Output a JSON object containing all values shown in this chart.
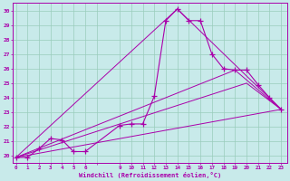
{
  "bg_color": "#c8eaea",
  "line_color": "#aa00aa",
  "grid_color": "#99ccbb",
  "xlabel": "Windchill (Refroidissement éolien,°C)",
  "ytick_labels": [
    "20",
    "21",
    "22",
    "23",
    "24",
    "25",
    "26",
    "27",
    "28",
    "29",
    "30"
  ],
  "ytick_positions": [
    20,
    21,
    22,
    23,
    24,
    25,
    26,
    27,
    28,
    29,
    30
  ],
  "xtick_labels": [
    "0",
    "1",
    "2",
    "3",
    "4",
    "5",
    "6",
    "",
    "9",
    "10",
    "11",
    "12",
    "13",
    "14",
    "15",
    "16",
    "17",
    "18",
    "19",
    "20",
    "21",
    "22",
    "23"
  ],
  "xtick_positions": [
    0,
    1,
    2,
    3,
    4,
    5,
    6,
    7,
    9,
    10,
    11,
    12,
    13,
    14,
    15,
    16,
    17,
    18,
    19,
    20,
    21,
    22,
    23
  ],
  "main_series_x": [
    0,
    1,
    2,
    3,
    4,
    5,
    6,
    9,
    10,
    11,
    12,
    13,
    14,
    15,
    16,
    17,
    18,
    19,
    20,
    21,
    22,
    23
  ],
  "main_series_y": [
    19.9,
    19.9,
    20.5,
    21.2,
    21.1,
    20.3,
    20.3,
    22.1,
    22.2,
    22.2,
    24.1,
    29.3,
    30.1,
    29.3,
    29.3,
    27.0,
    26.0,
    25.9,
    25.9,
    24.9,
    24.0,
    23.2
  ],
  "straight_lines": [
    {
      "x": [
        0,
        23
      ],
      "y": [
        19.9,
        23.2
      ]
    },
    {
      "x": [
        0,
        20,
        23
      ],
      "y": [
        19.9,
        25.0,
        23.2
      ]
    },
    {
      "x": [
        0,
        19,
        23
      ],
      "y": [
        19.9,
        25.9,
        23.2
      ]
    },
    {
      "x": [
        0,
        14,
        23
      ],
      "y": [
        19.9,
        30.1,
        23.2
      ]
    }
  ],
  "ylim": [
    19.5,
    30.5
  ],
  "xlim": [
    -0.3,
    23.5
  ]
}
